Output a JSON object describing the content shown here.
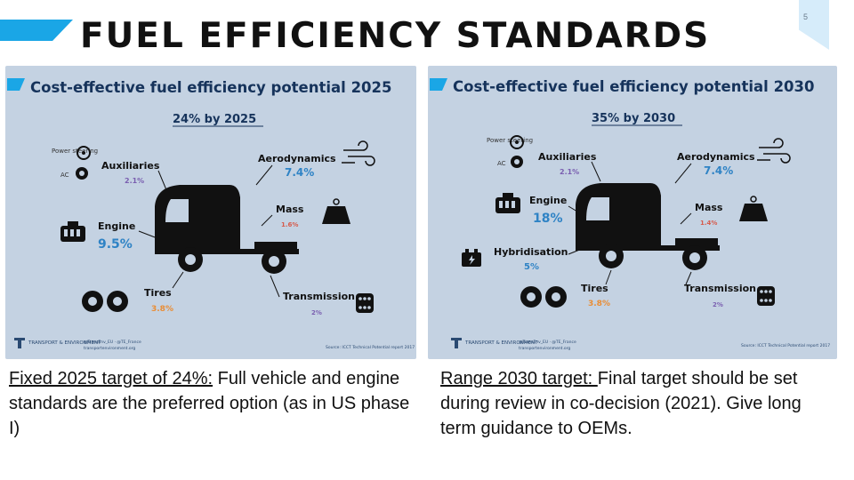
{
  "slide": {
    "title": "FUEL EFFICIENCY STANDARDS",
    "page_number": "5",
    "accent_color": "#1aa6e6"
  },
  "panels": [
    {
      "title": "Cost-effective fuel efficiency potential 2025",
      "target": "24% by 2025",
      "power_steering": "Power steering",
      "ac": "AC",
      "auxiliaries": {
        "label": "Auxiliaries",
        "value": "2.1%"
      },
      "aerodynamics": {
        "label": "Aerodynamics",
        "value": "7.4%"
      },
      "mass": {
        "label": "Mass",
        "value": "1.6%"
      },
      "engine": {
        "label": "Engine",
        "value": "9.5%"
      },
      "tires": {
        "label": "Tires",
        "value": "3.8%"
      },
      "transmission": {
        "label": "Transmission",
        "value": "2%"
      },
      "brand": "TRANSPORT & ENVIRONMENT",
      "source": "Source: ICCT Technical Potential report 2017"
    },
    {
      "title": "Cost-effective fuel efficiency potential 2030",
      "target": "35% by 2030",
      "power_steering": "Power steering",
      "ac": "AC",
      "auxiliaries": {
        "label": "Auxiliaries",
        "value": "2.1%"
      },
      "aerodynamics": {
        "label": "Aerodynamics",
        "value": "7.4%"
      },
      "engine": {
        "label": "Engine",
        "value": "18%"
      },
      "mass": {
        "label": "Mass",
        "value": "1.4%"
      },
      "hybridisation": {
        "label": "Hybridisation",
        "value": "5%"
      },
      "tires": {
        "label": "Tires",
        "value": "3.8%"
      },
      "transmission": {
        "label": "Transmission",
        "value": "2%"
      },
      "brand": "TRANSPORT & ENVIRONMENT",
      "source": "Source: ICCT Technical Potential report 2017"
    }
  ],
  "captions": {
    "left_underlined": "Fixed 2025 target of 24%:",
    "left_rest": " Full vehicle and engine standards are the preferred option (as in US phase I)",
    "right_underlined": "Range 2030 target: ",
    "right_rest": "Final target should be set during  review in co-decision (2021). Give long term guidance to OEMs."
  }
}
